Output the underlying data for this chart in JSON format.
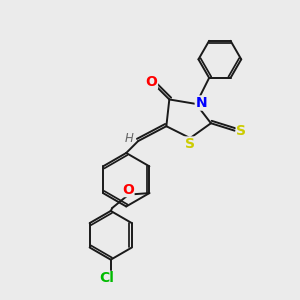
{
  "bg_color": "#ebebeb",
  "bond_color": "#1a1a1a",
  "atom_colors": {
    "O": "#ff0000",
    "N": "#0000ff",
    "S": "#cccc00",
    "Cl": "#00bb00",
    "H": "#666666",
    "C": "#1a1a1a"
  },
  "font_size": 8.5,
  "fig_size": [
    3.0,
    3.0
  ],
  "dpi": 100
}
